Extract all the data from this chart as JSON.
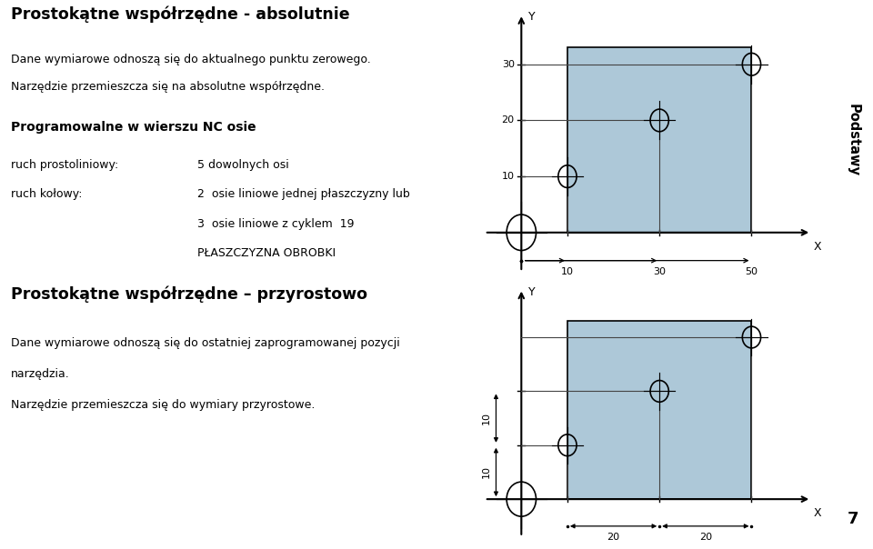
{
  "bg_color": "#c9bfb2",
  "blue_fill": "#adc8d8",
  "white_bg": "#ffffff",
  "title1": "Prostokątne współrzędne - absolutnie",
  "desc1_line1": "Dane wymiarowe odnoszą się do aktualnego punktu zerowego.",
  "desc1_line2": "Narzędzie przemieszcza się na absolutne współrzędne.",
  "prog_title": "Programowalne w wierszu NC osie",
  "prog_line1_label": "ruch prostoliniowy:",
  "prog_line1_val": "5 dowolnych osi",
  "prog_line2_label": "ruch kołowy:",
  "prog_line2_val": "2  osie liniowe jednej płaszczyzny lub",
  "prog_line3_val": "3  osie liniowe z cyklem  19",
  "prog_line4_val": "PŁASZCZYZNA OBROBKI",
  "title2": "Prostokątne współrzędne – przyrostowo",
  "desc2_line1": "Dane wymiarowe odnoszą się do ostatniej zaprogramowanej pozycji",
  "desc2_line2": "narzędzia.",
  "desc2_line3": "Narzędzie przemieszcza się do wymiary przyrostowe.",
  "podstawy_text": "Podstawy",
  "page_num": "7",
  "separator_color": "#aaaaaa",
  "chart1": {
    "points": [
      [
        0,
        0
      ],
      [
        10,
        10
      ],
      [
        30,
        20
      ],
      [
        50,
        30
      ]
    ],
    "xticks": [
      10,
      30,
      50
    ],
    "yticks": [
      10,
      20,
      30
    ],
    "xlim": [
      -8,
      65
    ],
    "ylim": [
      -7,
      40
    ]
  },
  "chart2": {
    "points": [
      [
        0,
        0
      ],
      [
        10,
        10
      ],
      [
        30,
        20
      ],
      [
        50,
        30
      ]
    ],
    "xlim": [
      -8,
      65
    ],
    "ylim": [
      -7,
      40
    ]
  }
}
